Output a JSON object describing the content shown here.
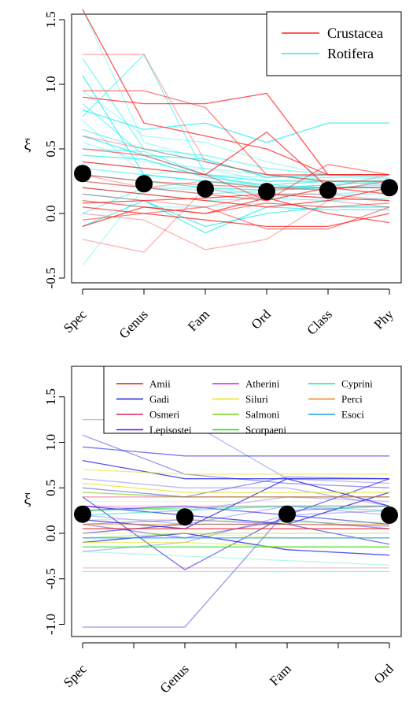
{
  "chart_data": [
    {
      "type": "line",
      "ylabel": "ξ",
      "categories": [
        "Spec",
        "Genus",
        "Fam",
        "Ord",
        "Class",
        "Phy"
      ],
      "ylim": [
        -0.55,
        1.6
      ],
      "yticks": [
        -0.5,
        0.0,
        0.5,
        1.0,
        1.5
      ],
      "ytick_labels": [
        "-0.5",
        "0.0",
        "0.5",
        "1.0",
        "1.5"
      ],
      "legend_position": "top-right",
      "series_groups": [
        {
          "name": "Crustacea",
          "color": "#ff2020"
        },
        {
          "name": "Rotifera",
          "color": "#22eeee"
        }
      ],
      "means": [
        0.31,
        0.23,
        0.19,
        0.17,
        0.18,
        0.2
      ],
      "series": [
        {
          "group": "Rotifera",
          "values": [
            1.58,
            0.55,
            0.42,
            0.28,
            0.3,
            0.3
          ]
        },
        {
          "group": "Rotifera",
          "values": [
            1.2,
            0.5,
            0.45,
            0.35,
            0.3,
            0.28
          ]
        },
        {
          "group": "Rotifera",
          "values": [
            1.07,
            0.3,
            0.25,
            0.2,
            0.22,
            0.25
          ]
        },
        {
          "group": "Rotifera",
          "values": [
            0.95,
            0.6,
            0.55,
            0.4,
            0.3,
            0.3
          ]
        },
        {
          "group": "Rotifera",
          "values": [
            0.85,
            0.45,
            0.3,
            0.25,
            0.25,
            0.22
          ]
        },
        {
          "group": "Rotifera",
          "values": [
            0.8,
            0.65,
            0.7,
            0.55,
            0.7,
            0.7
          ]
        },
        {
          "group": "Rotifera",
          "values": [
            0.72,
            0.3,
            0.35,
            0.3,
            0.28,
            0.3
          ]
        },
        {
          "group": "Rotifera",
          "values": [
            0.65,
            0.5,
            0.4,
            0.3,
            0.25,
            0.25
          ]
        },
        {
          "group": "Rotifera",
          "values": [
            0.6,
            0.45,
            0.42,
            0.28,
            0.3,
            0.3
          ]
        },
        {
          "group": "Rotifera",
          "values": [
            0.55,
            0.4,
            0.35,
            0.25,
            0.28,
            0.27
          ]
        },
        {
          "group": "Rotifera",
          "values": [
            0.5,
            0.48,
            0.3,
            0.2,
            0.2,
            0.2
          ]
        },
        {
          "group": "Rotifera",
          "values": [
            0.45,
            0.42,
            0.28,
            0.22,
            0.25,
            0.25
          ]
        },
        {
          "group": "Rotifera",
          "values": [
            0.4,
            0.35,
            0.3,
            0.28,
            0.3,
            0.3
          ]
        },
        {
          "group": "Rotifera",
          "values": [
            0.35,
            0.3,
            0.25,
            0.22,
            0.2,
            0.22
          ]
        },
        {
          "group": "Rotifera",
          "values": [
            0.3,
            0.25,
            0.2,
            0.18,
            0.2,
            0.2
          ]
        },
        {
          "group": "Rotifera",
          "values": [
            0.25,
            0.2,
            0.18,
            0.15,
            0.15,
            0.18
          ]
        },
        {
          "group": "Rotifera",
          "values": [
            0.2,
            0.15,
            0.1,
            0.12,
            0.1,
            0.12
          ]
        },
        {
          "group": "Rotifera",
          "values": [
            0.15,
            0.1,
            -0.15,
            0.05,
            0.03,
            0.03
          ]
        },
        {
          "group": "Rotifera",
          "values": [
            0.1,
            0.05,
            0.05,
            0.08,
            0.05,
            0.05
          ]
        },
        {
          "group": "Rotifera",
          "values": [
            0.0,
            0.2,
            0.15,
            0.18,
            0.2,
            0.2
          ]
        },
        {
          "group": "Rotifera",
          "values": [
            -0.1,
            0.1,
            -0.1,
            0.0,
            0.05,
            0.05
          ]
        },
        {
          "group": "Rotifera",
          "values": [
            -0.4,
            0.2,
            0.2,
            0.15,
            0.15,
            0.15
          ]
        },
        {
          "group": "Rotifera",
          "values": [
            0.75,
            1.23,
            0.3,
            0.25,
            0.25,
            0.25
          ]
        },
        {
          "group": "Crustacea",
          "values": [
            1.58,
            0.7,
            0.6,
            0.5,
            0.3,
            0.3
          ]
        },
        {
          "group": "Crustacea",
          "values": [
            1.23,
            1.23,
            0.4,
            0.3,
            0.25,
            0.25
          ]
        },
        {
          "group": "Crustacea",
          "values": [
            0.95,
            0.95,
            0.82,
            0.3,
            0.3,
            0.3
          ]
        },
        {
          "group": "Crustacea",
          "values": [
            0.9,
            0.85,
            0.85,
            0.93,
            0.3,
            0.3
          ]
        },
        {
          "group": "Crustacea",
          "values": [
            0.6,
            0.5,
            0.4,
            0.3,
            0.25,
            0.25
          ]
        },
        {
          "group": "Crustacea",
          "values": [
            0.5,
            0.45,
            0.3,
            0.1,
            0.38,
            0.3
          ]
        },
        {
          "group": "Crustacea",
          "values": [
            0.4,
            0.35,
            0.3,
            0.63,
            0.2,
            0.2
          ]
        },
        {
          "group": "Crustacea",
          "values": [
            0.3,
            0.2,
            0.25,
            0.2,
            0.2,
            0.3
          ]
        },
        {
          "group": "Crustacea",
          "values": [
            0.25,
            0.2,
            0.15,
            0.1,
            0.2,
            0.15
          ]
        },
        {
          "group": "Crustacea",
          "values": [
            0.2,
            0.15,
            0.1,
            0.05,
            0.1,
            0.2
          ]
        },
        {
          "group": "Crustacea",
          "values": [
            0.15,
            0.1,
            0.05,
            0.15,
            0.15,
            0.1
          ]
        },
        {
          "group": "Crustacea",
          "values": [
            0.1,
            0.05,
            0.0,
            0.08,
            0.05,
            0.08
          ]
        },
        {
          "group": "Crustacea",
          "values": [
            0.05,
            0.0,
            -0.05,
            -0.1,
            -0.1,
            0.0
          ]
        },
        {
          "group": "Crustacea",
          "values": [
            0.0,
            -0.05,
            -0.28,
            -0.2,
            0.1,
            0.05
          ]
        },
        {
          "group": "Crustacea",
          "values": [
            -0.05,
            0.0,
            0.05,
            -0.12,
            -0.12,
            0.05
          ]
        },
        {
          "group": "Crustacea",
          "values": [
            -0.1,
            0.05,
            0.0,
            0.12,
            0.0,
            -0.07
          ]
        },
        {
          "group": "Crustacea",
          "values": [
            -0.2,
            -0.3,
            0.2,
            0.1,
            0.2,
            0.15
          ]
        },
        {
          "group": "Crustacea",
          "values": [
            0.3,
            0.25,
            0.22,
            0.2,
            0.18,
            0.25
          ]
        },
        {
          "group": "Crustacea",
          "values": [
            0.08,
            0.1,
            0.12,
            0.15,
            0.12,
            0.1
          ]
        }
      ]
    },
    {
      "type": "line",
      "ylabel": "ξ",
      "categories": [
        "Spec",
        "Genus",
        "Fam",
        "Ord"
      ],
      "ylim": [
        -1.1,
        1.75
      ],
      "yticks": [
        -1.0,
        -0.5,
        0.0,
        0.5,
        1.0,
        1.5
      ],
      "ytick_labels": [
        "-1.0",
        "-0.5",
        "0.0",
        "0.5",
        "1.0",
        "1.5"
      ],
      "legend_position": "top-right",
      "series_groups": [
        {
          "name": "Amii",
          "color": "#e41a1c"
        },
        {
          "name": "Gadi",
          "color": "#1a1ae4"
        },
        {
          "name": "Osmeri",
          "color": "#e4246a"
        },
        {
          "name": "Lepisostei",
          "color": "#5a1ae4"
        },
        {
          "name": "Atherini",
          "color": "#e41ae4"
        },
        {
          "name": "Siluri",
          "color": "#e4e41a"
        },
        {
          "name": "Salmoni",
          "color": "#7ad41a"
        },
        {
          "name": "Scorpaeni",
          "color": "#1ae41a"
        },
        {
          "name": "Cyprini",
          "color": "#1ae4b0"
        },
        {
          "name": "Perci",
          "color": "#e4821a"
        },
        {
          "name": "Esoci",
          "color": "#1aa0e4"
        }
      ],
      "means": [
        0.21,
        0.18,
        0.21,
        0.2
      ],
      "series": [
        {
          "group": "Gadi",
          "values": [
            1.25,
            1.25,
            0.6,
            0.55
          ]
        },
        {
          "group": "Gadi",
          "values": [
            1.08,
            0.65,
            0.55,
            0.5
          ]
        },
        {
          "group": "Gadi",
          "values": [
            0.95,
            0.85,
            0.85,
            0.85
          ]
        },
        {
          "group": "Gadi",
          "values": [
            0.8,
            0.6,
            0.6,
            0.6
          ]
        },
        {
          "group": "Gadi",
          "values": [
            0.6,
            0.5,
            0.5,
            0.3
          ]
        },
        {
          "group": "Gadi",
          "values": [
            0.5,
            0.4,
            0.62,
            0.6
          ]
        },
        {
          "group": "Gadi",
          "values": [
            0.4,
            -0.4,
            0.2,
            0.6
          ]
        },
        {
          "group": "Gadi",
          "values": [
            0.3,
            0.2,
            0.1,
            0.45
          ]
        },
        {
          "group": "Gadi",
          "values": [
            0.2,
            0.1,
            0.3,
            0.2
          ]
        },
        {
          "group": "Gadi",
          "values": [
            0.1,
            -0.05,
            0.15,
            0.05
          ]
        },
        {
          "group": "Gadi",
          "values": [
            0.0,
            0.1,
            0.1,
            -0.12
          ]
        },
        {
          "group": "Gadi",
          "values": [
            -0.1,
            0.0,
            -0.18,
            -0.24
          ]
        },
        {
          "group": "Gadi",
          "values": [
            -0.2,
            -0.1,
            0.2,
            0.25
          ]
        },
        {
          "group": "Gadi",
          "values": [
            -1.03,
            -1.03,
            0.25,
            0.3
          ]
        },
        {
          "group": "Gadi",
          "values": [
            0.25,
            0.3,
            0.2,
            0.1
          ]
        },
        {
          "group": "Gadi",
          "values": [
            0.15,
            0.05,
            0.6,
            0.3
          ]
        },
        {
          "group": "Lepisostei",
          "values": [
            0.3,
            0.25,
            0.4,
            0.35
          ]
        },
        {
          "group": "Lepisostei",
          "values": [
            0.1,
            0.15,
            0.1,
            0.08
          ]
        },
        {
          "group": "Siluri",
          "values": [
            0.7,
            0.65,
            0.65,
            0.65
          ]
        },
        {
          "group": "Siluri",
          "values": [
            0.55,
            0.45,
            0.45,
            0.45
          ]
        },
        {
          "group": "Siluri",
          "values": [
            0.35,
            0.35,
            0.35,
            0.35
          ]
        },
        {
          "group": "Siluri",
          "values": [
            0.0,
            0.0,
            -0.05,
            -0.05
          ]
        },
        {
          "group": "Siluri",
          "values": [
            -0.1,
            -0.1,
            -0.15,
            -0.15
          ]
        },
        {
          "group": "Salmoni",
          "values": [
            0.45,
            0.4,
            0.4,
            0.4
          ]
        },
        {
          "group": "Salmoni",
          "values": [
            0.15,
            0.15,
            0.12,
            0.12
          ]
        },
        {
          "group": "Salmoni",
          "values": [
            -0.05,
            0.0,
            0.0,
            0.0
          ]
        },
        {
          "group": "Scorpaeni",
          "values": [
            0.25,
            0.28,
            0.3,
            0.3
          ]
        },
        {
          "group": "Scorpaeni",
          "values": [
            -0.15,
            -0.15,
            -0.15,
            -0.15
          ]
        },
        {
          "group": "Cyprini",
          "values": [
            -0.2,
            -0.25,
            -0.3,
            -0.35
          ]
        },
        {
          "group": "Cyprini",
          "values": [
            -0.42,
            -0.42,
            -0.42,
            -0.42
          ]
        },
        {
          "group": "Cyprini",
          "values": [
            0.2,
            0.25,
            0.3,
            0.25
          ]
        },
        {
          "group": "Amii",
          "values": [
            0.05,
            0.05,
            0.05,
            0.05
          ]
        },
        {
          "group": "Osmeri",
          "values": [
            -0.38,
            -0.38,
            -0.38,
            -0.38
          ]
        },
        {
          "group": "Osmeri",
          "values": [
            0.4,
            0.4,
            0.4,
            0.4
          ]
        },
        {
          "group": "Perci",
          "values": [
            0.1,
            0.1,
            0.1,
            0.1
          ]
        },
        {
          "group": "Esoci",
          "values": [
            -0.05,
            -0.05,
            -0.05,
            -0.05
          ]
        },
        {
          "group": "Atherini",
          "values": [
            0.3,
            0.3,
            0.3,
            0.3
          ]
        }
      ]
    }
  ]
}
